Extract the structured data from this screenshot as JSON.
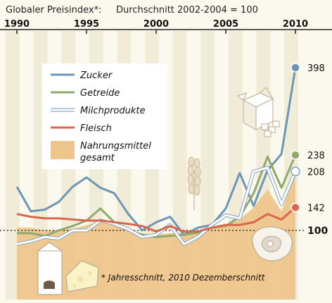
{
  "chart_data": {
    "type": "line",
    "title": "Globaler Preisindex*:",
    "subtitle": "Durchschnitt 2002-2004 = 100",
    "x_ticks": [
      "1990",
      "1995",
      "2000",
      "2005",
      "2010"
    ],
    "xlim": [
      1990,
      2010
    ],
    "ylim": [
      0,
      420
    ],
    "baseline": {
      "value": 100,
      "label": "100"
    },
    "x": [
      1990,
      1991,
      1992,
      1993,
      1994,
      1995,
      1996,
      1997,
      1998,
      1999,
      2000,
      2001,
      2002,
      2003,
      2004,
      2005,
      2006,
      2007,
      2008,
      2009,
      2010
    ],
    "series": [
      {
        "name": "Zucker",
        "color": "#6b96b6",
        "values": [
          180,
          135,
          138,
          152,
          180,
          197,
          178,
          168,
          130,
          100,
          115,
          125,
          92,
          105,
          110,
          140,
          205,
          145,
          210,
          240,
          398
        ],
        "end_label": "398"
      },
      {
        "name": "Getreide",
        "color": "#8faa6b",
        "values": [
          95,
          95,
          90,
          100,
          108,
          118,
          140,
          115,
          100,
          92,
          88,
          90,
          92,
          96,
          105,
          108,
          125,
          168,
          235,
          178,
          238
        ],
        "end_label": "238"
      },
      {
        "name": "Milchprodukte",
        "color": "#ffffff",
        "values": [
          75,
          80,
          88,
          85,
          100,
          100,
          118,
          112,
          102,
          88,
          92,
          110,
          75,
          88,
          110,
          128,
          122,
          208,
          215,
          148,
          208
        ],
        "end_label": "208"
      },
      {
        "name": "Fleisch",
        "color": "#d9664d",
        "values": [
          130,
          125,
          122,
          122,
          120,
          118,
          118,
          115,
          112,
          108,
          98,
          108,
          98,
          98,
          105,
          110,
          110,
          115,
          130,
          120,
          142
        ],
        "end_label": "142"
      },
      {
        "name": "Nahrungsmittel gesamt",
        "color": "#eec68c",
        "type": "area",
        "values": [
          105,
          105,
          100,
          100,
          103,
          110,
          115,
          110,
          100,
          95,
          92,
          95,
          95,
          98,
          105,
          110,
          120,
          142,
          175,
          135,
          205
        ],
        "end_label": ""
      }
    ],
    "legend_position": "top-left",
    "footnote": "* Jahresschnitt, 2010 Dezemberschnitt"
  },
  "legend": {
    "items": [
      {
        "label": "Zucker",
        "color": "#6b96b6",
        "kind": "line"
      },
      {
        "label": "Getreide",
        "color": "#8faa6b",
        "kind": "line"
      },
      {
        "label": "Milchprodukte",
        "color": "#ffffff",
        "kind": "line-outline"
      },
      {
        "label": "Fleisch",
        "color": "#d9664d",
        "kind": "line"
      },
      {
        "label": "Nahrungsmittel",
        "label2": "gesamt",
        "color": "#eec68c",
        "kind": "swatch"
      }
    ]
  },
  "decorations": [
    "sugar-box-icon",
    "wheat-icon",
    "meat-icon",
    "milk-carton-icon",
    "cheese-icon"
  ]
}
